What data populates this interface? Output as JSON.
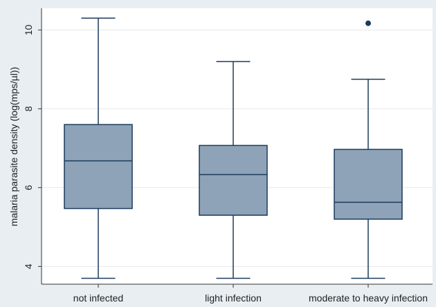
{
  "chart_data": {
    "type": "box",
    "title": "",
    "xlabel": "",
    "ylabel": "malaria parasite density (log(mps/µl))",
    "ylim": [
      3.55,
      10.55
    ],
    "yticks": [
      4,
      6,
      8,
      10
    ],
    "grid": true,
    "legend": "none",
    "categories": [
      "not infected",
      "light infection",
      "moderate to heavy infection"
    ],
    "boxes": [
      {
        "whisker_low": 3.7,
        "q1": 5.47,
        "median": 6.68,
        "q3": 7.6,
        "whisker_high": 10.3,
        "outliers": []
      },
      {
        "whisker_low": 3.7,
        "q1": 5.3,
        "median": 6.33,
        "q3": 7.07,
        "whisker_high": 9.2,
        "outliers": []
      },
      {
        "whisker_low": 3.7,
        "q1": 5.2,
        "median": 5.63,
        "q3": 6.97,
        "whisker_high": 8.75,
        "outliers": [
          10.17
        ]
      }
    ]
  },
  "colors": {
    "box_fill": "#8ea3b7",
    "box_line": "#1c3a5c",
    "outlier": "#1c3a5c",
    "grid": "#e9ecee",
    "plot_bg": "#ffffff",
    "page_bg": "#e8eef2"
  }
}
